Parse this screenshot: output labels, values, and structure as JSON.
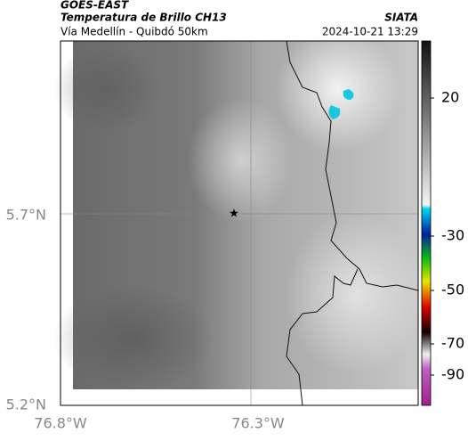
{
  "header": {
    "source": "GOES-EAST",
    "product": "Temperatura de Brillo CH13",
    "agency": "SIATA",
    "region": "Vía Medellín - Quibdó 50km",
    "timestamp": "2024-10-21 13:29"
  },
  "map": {
    "lat_ticks": [
      "5.7°N",
      "5.2°N"
    ],
    "lon_ticks": [
      "76.8°W",
      "76.3°W"
    ]
  },
  "colorbar": {
    "ticks": [
      20,
      -30,
      -50,
      -70,
      -90
    ]
  }
}
